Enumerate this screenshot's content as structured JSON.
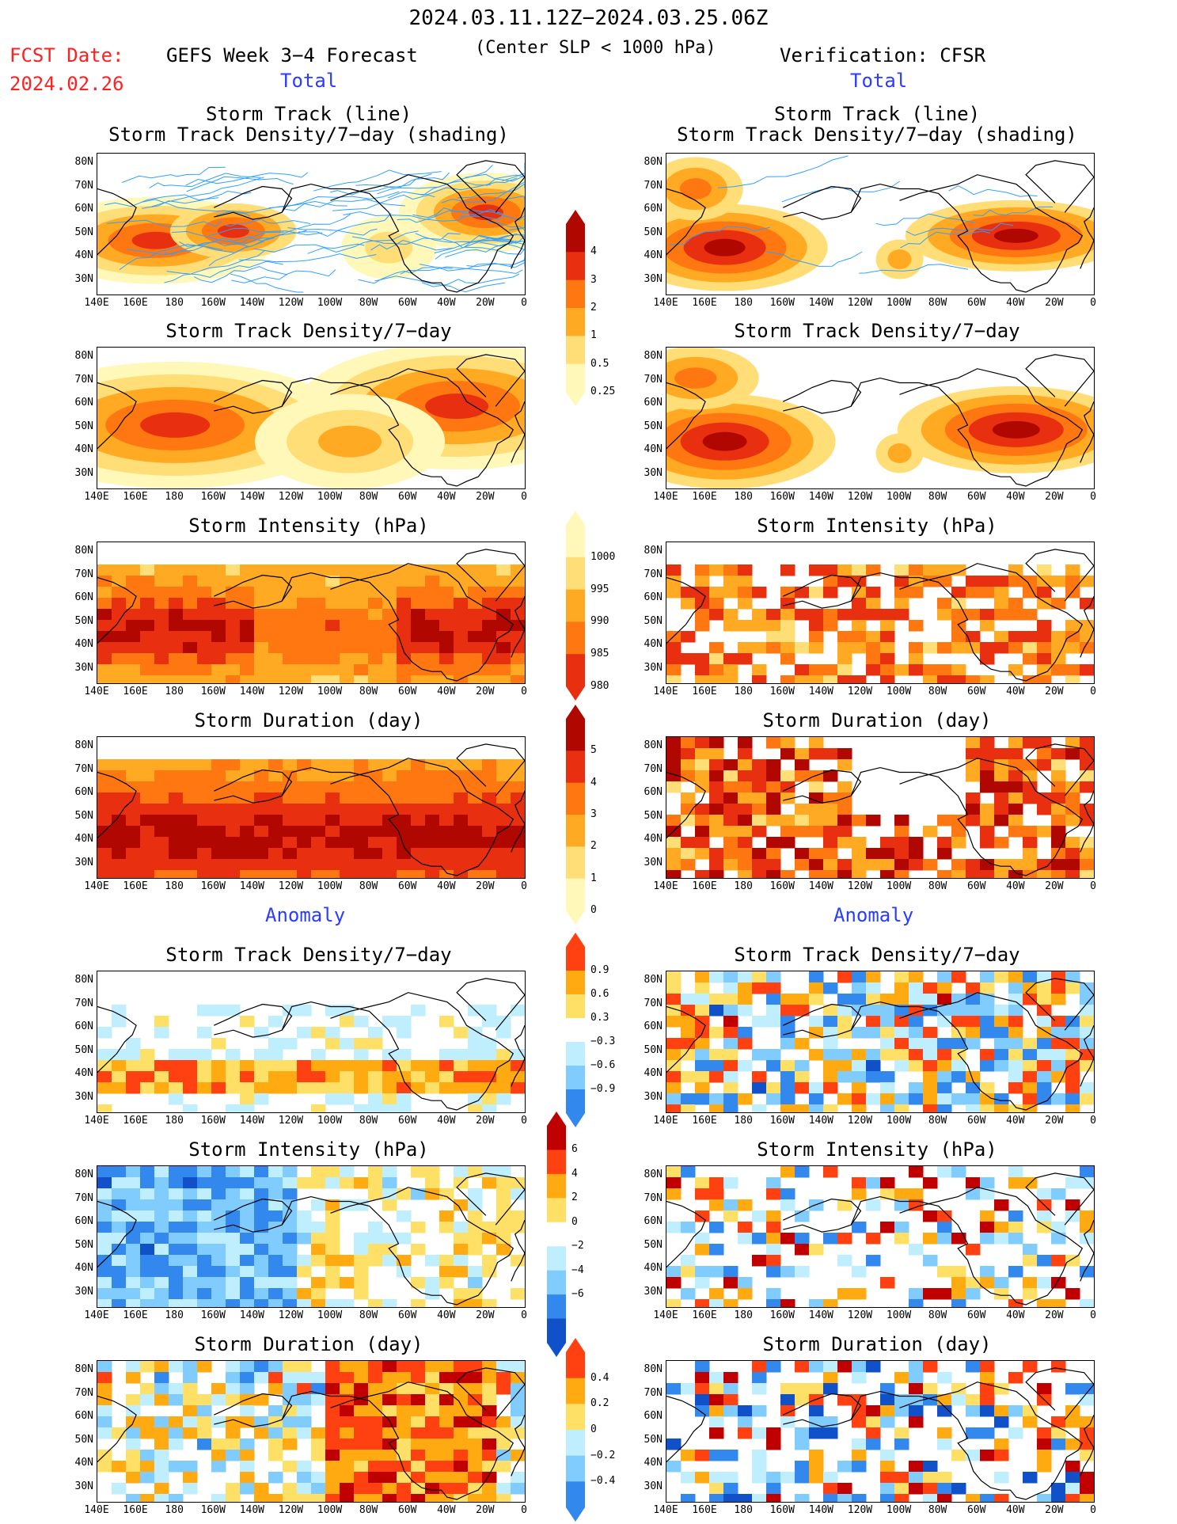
{
  "header": {
    "date_range": "2024.03.11.12Z−2024.03.25.06Z",
    "fcst_label": "FCST Date:",
    "fcst_date": "2024.02.26",
    "forecast_title": "GEFS Week 3−4 Forecast",
    "criterion": "(Center SLP < 1000 hPa)",
    "verification": "Verification: CFSR"
  },
  "sections": {
    "total": "Total",
    "anomaly": "Anomaly"
  },
  "panel_titles": {
    "track_line": "Storm Track (line)",
    "track_density_shading": "Storm Track Density/7−day (shading)",
    "track_density": "Storm Track Density/7−day",
    "intensity": "Storm Intensity (hPa)",
    "duration": "Storm Duration (day)"
  },
  "axes": {
    "lat_labels": [
      "80N",
      "70N",
      "60N",
      "50N",
      "40N",
      "30N"
    ],
    "lon_labels": [
      "140E",
      "160E",
      "180",
      "160W",
      "140W",
      "120W",
      "100W",
      "80W",
      "60W",
      "40W",
      "20W",
      "0"
    ]
  },
  "colorbars": {
    "density_total": [
      "4",
      "3",
      "2",
      "1",
      "0.5",
      "0.25"
    ],
    "intensity_total": [
      "1000",
      "995",
      "990",
      "985",
      "980"
    ],
    "duration_total": [
      "5",
      "4",
      "3",
      "2",
      "1",
      "0"
    ],
    "density_anom": [
      "0.9",
      "0.6",
      "0.3",
      "−0.3",
      "−0.6",
      "−0.9"
    ],
    "intensity_anom": [
      "6",
      "4",
      "2",
      "0",
      "−2",
      "−4",
      "−6"
    ],
    "duration_anom": [
      "0.4",
      "0.2",
      "0",
      "−0.2",
      "−0.4"
    ]
  },
  "colors": {
    "seq": [
      "#fff8b8",
      "#ffdd77",
      "#ffaa22",
      "#ff7711",
      "#e83010",
      "#b00800"
    ],
    "div_warm": [
      "#ffe066",
      "#ffaa10",
      "#ff4010",
      "#c00000"
    ],
    "div_cool": [
      "#bfeeff",
      "#80ccff",
      "#3388ee",
      "#1050c8"
    ],
    "track_line": "#30a0ff",
    "title_red": "#ff2020",
    "section_blue": "#2a3cff"
  }
}
